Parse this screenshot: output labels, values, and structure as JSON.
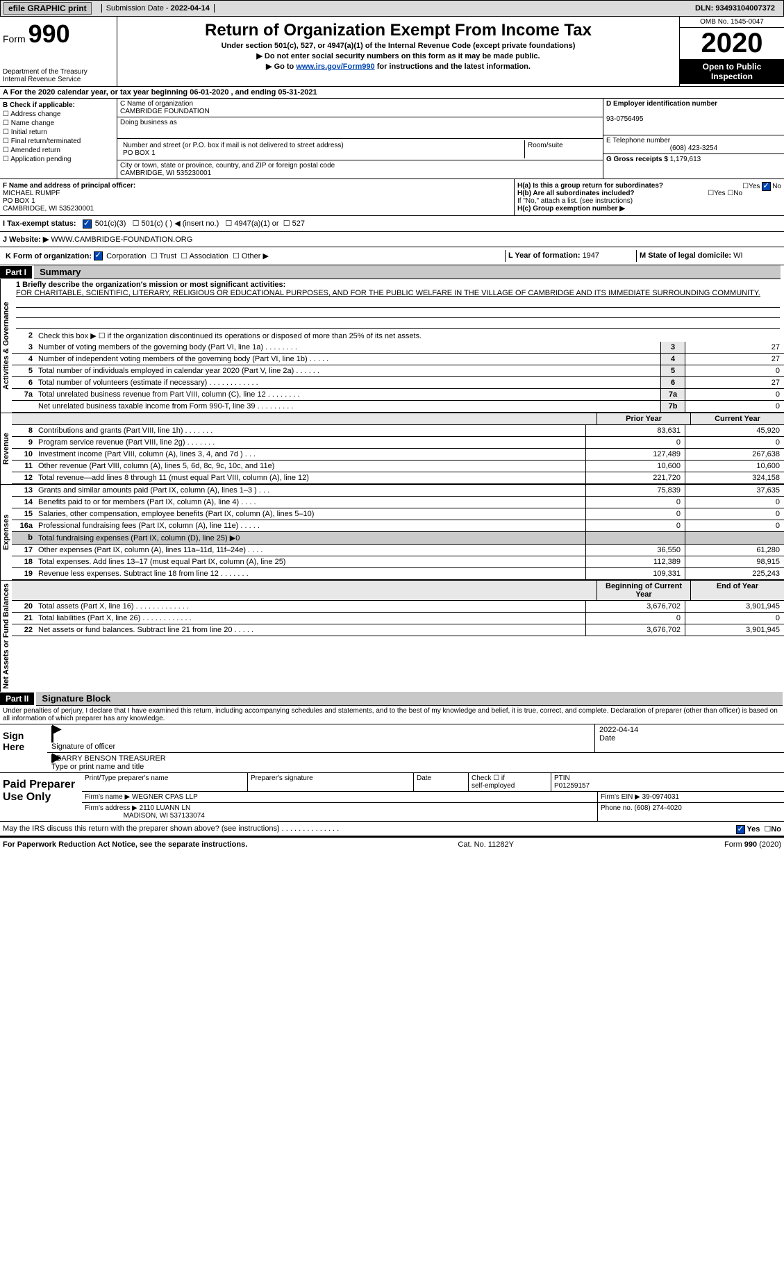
{
  "topbar": {
    "efile": "efile GRAPHIC print",
    "submission_label": "Submission Date - ",
    "submission_date": "2022-04-14",
    "dln_label": "DLN: ",
    "dln": "93493104007372"
  },
  "header": {
    "form_prefix": "Form",
    "form_number": "990",
    "dept1": "Department of the Treasury",
    "dept2": "Internal Revenue Service",
    "title": "Return of Organization Exempt From Income Tax",
    "under": "Under section 501(c), 527, or 4947(a)(1) of the Internal Revenue Code (except private foundations)",
    "warn": "▶ Do not enter social security numbers on this form as it may be made public.",
    "goto_pre": "▶ Go to ",
    "goto_link": "www.irs.gov/Form990",
    "goto_post": " for instructions and the latest information.",
    "omb": "OMB No. 1545-0047",
    "year": "2020",
    "open": "Open to Public Inspection"
  },
  "period": {
    "pre": "A For the 2020 calendar year, or tax year beginning ",
    "begin": "06-01-2020",
    "mid": "   , and ending ",
    "end": "05-31-2021"
  },
  "boxB": {
    "head": "B Check if applicable:",
    "opts": [
      "Address change",
      "Name change",
      "Initial return",
      "Final return/terminated",
      "Amended return",
      "Application pending"
    ]
  },
  "boxC": {
    "name_lab": "C Name of organization",
    "name": "CAMBRIDGE FOUNDATION",
    "dba_lab": "Doing business as",
    "addr_lab": "Number and street (or P.O. box if mail is not delivered to street address)",
    "room_lab": "Room/suite",
    "addr": "PO BOX 1",
    "city_lab": "City or town, state or province, country, and ZIP or foreign postal code",
    "city": "CAMBRIDGE, WI  535230001"
  },
  "boxD": {
    "ein_lab": "D Employer identification number",
    "ein": "93-0756495",
    "tel_lab": "E Telephone number",
    "tel": "(608) 423-3254",
    "gross_lab": "G Gross receipts $ ",
    "gross": "1,179,613"
  },
  "officer": {
    "lab": "F  Name and address of principal officer:",
    "name": "MICHAEL RUMPF",
    "line1": "PO BOX 1",
    "line2": "CAMBRIDGE, WI  535230001"
  },
  "boxH": {
    "a": "H(a)  Is this a group return for subordinates?",
    "b": "H(b)  Are all subordinates included?",
    "note": "If \"No,\" attach a list. (see instructions)",
    "c": "H(c)  Group exemption number ▶",
    "yes": "Yes",
    "no": "No"
  },
  "taxstatus": {
    "lab": "I  Tax-exempt status:",
    "o1": "501(c)(3)",
    "o2": "501(c) (  ) ◀ (insert no.)",
    "o3": "4947(a)(1) or",
    "o4": "527"
  },
  "website": {
    "lab": "J  Website: ▶ ",
    "val": "WWW.CAMBRIDGE-FOUNDATION.ORG"
  },
  "korg": {
    "lab": "K Form of organization:",
    "opts": [
      "Corporation",
      "Trust",
      "Association",
      "Other ▶"
    ],
    "checked": 0
  },
  "loc": {
    "L": "L Year of formation: ",
    "Lval": "1947",
    "M": "M State of legal domicile: ",
    "Mval": "WI"
  },
  "part1": {
    "hdr": "Part I",
    "title": "Summary"
  },
  "mission": {
    "lab": "1   Briefly describe the organization's mission or most significant activities:",
    "text": "FOR CHARITABLE, SCIENTIFIC, LITERARY, RELIGIOUS OR EDUCATIONAL PURPOSES, AND FOR THE PUBLIC WELFARE IN THE VILLAGE OF CAMBRIDGE AND ITS IMMEDIATE SURROUNDING COMMUNITY."
  },
  "line2": "Check this box ▶ ☐  if the organization discontinued its operations or disposed of more than 25% of its net assets.",
  "gov_lines": [
    {
      "n": "3",
      "d": "Number of voting members of the governing body (Part VI, line 1a)   .    .    .    .    .    .    .    .",
      "box": "3",
      "v": "27"
    },
    {
      "n": "4",
      "d": "Number of independent voting members of the governing body (Part VI, line 1b)   .    .    .    .    .",
      "box": "4",
      "v": "27"
    },
    {
      "n": "5",
      "d": "Total number of individuals employed in calendar year 2020 (Part V, line 2a)   .    .    .    .    .    .",
      "box": "5",
      "v": "0"
    },
    {
      "n": "6",
      "d": "Total number of volunteers (estimate if necessary)   .    .    .    .    .    .    .    .    .    .    .    .",
      "box": "6",
      "v": "27"
    },
    {
      "n": "7a",
      "d": "Total unrelated business revenue from Part VIII, column (C), line 12   .    .    .    .    .    .    .    .",
      "box": "7a",
      "v": "0"
    },
    {
      "n": "",
      "d": "Net unrelated business taxable income from Form 990-T, line 39   .    .    .    .    .    .    .    .    .",
      "box": "7b",
      "v": "0"
    }
  ],
  "colhead": {
    "prior": "Prior Year",
    "curr": "Current Year"
  },
  "rev_lines": [
    {
      "n": "8",
      "d": "Contributions and grants (Part VIII, line 1h)   .    .    .    .    .    .    .",
      "p": "83,631",
      "c": "45,920"
    },
    {
      "n": "9",
      "d": "Program service revenue (Part VIII, line 2g)   .    .    .    .    .    .    .",
      "p": "0",
      "c": "0"
    },
    {
      "n": "10",
      "d": "Investment income (Part VIII, column (A), lines 3, 4, and 7d )   .    .    .",
      "p": "127,489",
      "c": "267,638"
    },
    {
      "n": "11",
      "d": "Other revenue (Part VIII, column (A), lines 5, 6d, 8c, 9c, 10c, and 11e)",
      "p": "10,600",
      "c": "10,600"
    },
    {
      "n": "12",
      "d": "Total revenue—add lines 8 through 11 (must equal Part VIII, column (A), line 12)",
      "p": "221,720",
      "c": "324,158"
    }
  ],
  "exp_lines": [
    {
      "n": "13",
      "d": "Grants and similar amounts paid (Part IX, column (A), lines 1–3 )   .    .    .",
      "p": "75,839",
      "c": "37,635"
    },
    {
      "n": "14",
      "d": "Benefits paid to or for members (Part IX, column (A), line 4)   .    .    .    .",
      "p": "0",
      "c": "0"
    },
    {
      "n": "15",
      "d": "Salaries, other compensation, employee benefits (Part IX, column (A), lines 5–10)",
      "p": "0",
      "c": "0"
    },
    {
      "n": "16a",
      "d": "Professional fundraising fees (Part IX, column (A), line 11e)   .    .    .    .    .",
      "p": "0",
      "c": "0"
    },
    {
      "n": "b",
      "d": "Total fundraising expenses (Part IX, column (D), line 25) ▶0",
      "p": "",
      "c": "",
      "shade": true
    },
    {
      "n": "17",
      "d": "Other expenses (Part IX, column (A), lines 11a–11d, 11f–24e)   .    .    .    .",
      "p": "36,550",
      "c": "61,280"
    },
    {
      "n": "18",
      "d": "Total expenses. Add lines 13–17 (must equal Part IX, column (A), line 25)",
      "p": "112,389",
      "c": "98,915"
    },
    {
      "n": "19",
      "d": "Revenue less expenses. Subtract line 18 from line 12   .    .    .    .    .    .    .",
      "p": "109,331",
      "c": "225,243"
    }
  ],
  "net_head": {
    "beg": "Beginning of Current Year",
    "end": "End of Year"
  },
  "net_lines": [
    {
      "n": "20",
      "d": "Total assets (Part X, line 16)   .    .    .    .    .    .    .    .    .    .    .    .    .",
      "p": "3,676,702",
      "c": "3,901,945"
    },
    {
      "n": "21",
      "d": "Total liabilities (Part X, line 26)   .    .    .    .    .    .    .    .    .    .    .    .",
      "p": "0",
      "c": "0"
    },
    {
      "n": "22",
      "d": "Net assets or fund balances. Subtract line 21 from line 20   .    .    .    .    .",
      "p": "3,676,702",
      "c": "3,901,945"
    }
  ],
  "part2": {
    "hdr": "Part II",
    "title": "Signature Block"
  },
  "perjury": "Under penalties of perjury, I declare that I have examined this return, including accompanying schedules and statements, and to the best of my knowledge and belief, it is true, correct, and complete. Declaration of preparer (other than officer) is based on all information of which preparer has any knowledge.",
  "sign": {
    "here": "Sign Here",
    "sig_lab": "Signature of officer",
    "date_lab": "Date",
    "date": "2022-04-14",
    "name": "BARRY BENSON  TREASURER",
    "type_lab": "Type or print name and title"
  },
  "preparer": {
    "side": "Paid Preparer Use Only",
    "c1": "Print/Type preparer's name",
    "c2": "Preparer's signature",
    "c3": "Date",
    "c4a": "Check ☐ if",
    "c4b": "self-employed",
    "c5": "PTIN",
    "ptin": "P01259157",
    "firm_lab": "Firm's name   ▶ ",
    "firm": "WEGNER CPAS LLP",
    "ein_lab": "Firm's EIN ▶ ",
    "ein": "39-0974031",
    "addr_lab": "Firm's address ▶ ",
    "addr1": "2110 LUANN LN",
    "addr2": "MADISON, WI  537133074",
    "phone_lab": "Phone no. ",
    "phone": "(608) 274-4020"
  },
  "discuss": {
    "q": "May the IRS discuss this return with the preparer shown above? (see instructions)   .    .    .    .    .    .    .    .    .    .    .    .    .    .",
    "yes": "Yes",
    "no": "No"
  },
  "footer": {
    "left": "For Paperwork Reduction Act Notice, see the separate instructions.",
    "mid": "Cat. No. 11282Y",
    "right": "Form 990 (2020)"
  },
  "vlabels": {
    "gov": "Activities & Governance",
    "rev": "Revenue",
    "exp": "Expenses",
    "net": "Net Assets or Fund Balances"
  }
}
